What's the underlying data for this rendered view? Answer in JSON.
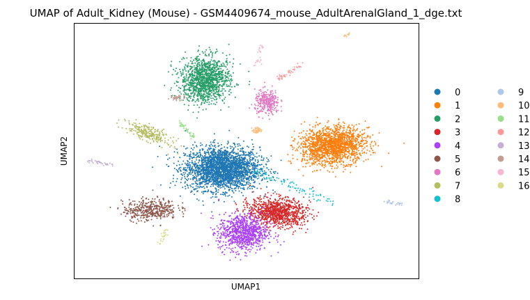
{
  "chart_data": {
    "type": "scatter",
    "title": "UMAP of Adult_Kidney (Mouse) - GSM4409674_mouse_AdultArenalGland_1_dge.txt",
    "xlabel": "UMAP1",
    "ylabel": "UMAP2",
    "xlim": [
      0,
      100
    ],
    "ylim": [
      0,
      100
    ],
    "ticks": "none",
    "grid": false,
    "legend": {
      "placement": "right",
      "columns": 2
    },
    "point_size": "small",
    "clusters": [
      {
        "name": "0",
        "color": "#1f77b4",
        "center": [
          43,
          43
        ],
        "spread": [
          9,
          7
        ],
        "count": 2600,
        "shape": "blob"
      },
      {
        "name": "1",
        "color": "#ff7f0e",
        "center": [
          75,
          52
        ],
        "spread": [
          8,
          6
        ],
        "count": 1700,
        "shape": "blob",
        "angle": 12
      },
      {
        "name": "2",
        "color": "#279e68",
        "center": [
          38,
          78
        ],
        "spread": [
          6,
          7.5
        ],
        "count": 1300,
        "shape": "blob",
        "angle": -10
      },
      {
        "name": "3",
        "color": "#d62728",
        "center": [
          59,
          26
        ],
        "spread": [
          7,
          4.5
        ],
        "count": 1000,
        "shape": "blob",
        "angle": -12
      },
      {
        "name": "4",
        "color": "#aa40fc",
        "center": [
          49,
          18
        ],
        "spread": [
          6,
          6
        ],
        "count": 900,
        "shape": "blob"
      },
      {
        "name": "5",
        "color": "#8c564b",
        "center": [
          22,
          27
        ],
        "spread": [
          6.5,
          3.5
        ],
        "count": 420,
        "shape": "blob",
        "angle": 5
      },
      {
        "name": "6",
        "color": "#e377c2",
        "center": [
          56,
          69
        ],
        "spread": [
          3,
          4
        ],
        "count": 300,
        "shape": "blob"
      },
      {
        "name": "7",
        "color": "#b5bd61",
        "center": [
          21.5,
          57
        ],
        "spread": [
          6,
          2.2
        ],
        "count": 260,
        "shape": "blob",
        "angle": -32
      },
      {
        "name": "8",
        "color": "#17becf",
        "from": [
          52,
          42
        ],
        "to": [
          75,
          30
        ],
        "width": 0.8,
        "count": 90,
        "shape": "line"
      },
      {
        "name": "9",
        "color": "#aec7e8",
        "from": [
          90,
          30
        ],
        "to": [
          95,
          29
        ],
        "width": 0.35,
        "count": 25,
        "shape": "line"
      },
      {
        "name": "10",
        "color": "#ffbb78",
        "center": [
          53,
          58
        ],
        "spread": [
          1.2,
          1
        ],
        "count": 40,
        "shape": "blob",
        "extra": {
          "from": [
            78.5,
            95
          ],
          "to": [
            80,
            96.5
          ],
          "count": 10
        }
      },
      {
        "name": "11",
        "color": "#98df8a",
        "from": [
          31,
          61
        ],
        "to": [
          35,
          55
        ],
        "width": 0.5,
        "count": 40,
        "shape": "line"
      },
      {
        "name": "12",
        "color": "#ff9896",
        "from": [
          59,
          78
        ],
        "to": [
          66,
          84
        ],
        "width": 0.5,
        "count": 45,
        "shape": "line"
      },
      {
        "name": "13",
        "color": "#c5b0d5",
        "from": [
          4,
          46
        ],
        "to": [
          11,
          44.5
        ],
        "width": 0.4,
        "count": 35,
        "shape": "line"
      },
      {
        "name": "14",
        "color": "#c49c94",
        "center": [
          30,
          71
        ],
        "spread": [
          1.8,
          0.9
        ],
        "count": 40,
        "shape": "blob"
      },
      {
        "name": "15",
        "color": "#f7b6d2",
        "from": [
          53,
          83
        ],
        "to": [
          54.5,
          92
        ],
        "width": 0.4,
        "count": 25,
        "shape": "line"
      },
      {
        "name": "16",
        "color": "#dbdb8d",
        "from": [
          25,
          14
        ],
        "to": [
          27,
          20
        ],
        "width": 0.4,
        "count": 25,
        "shape": "line"
      }
    ]
  }
}
